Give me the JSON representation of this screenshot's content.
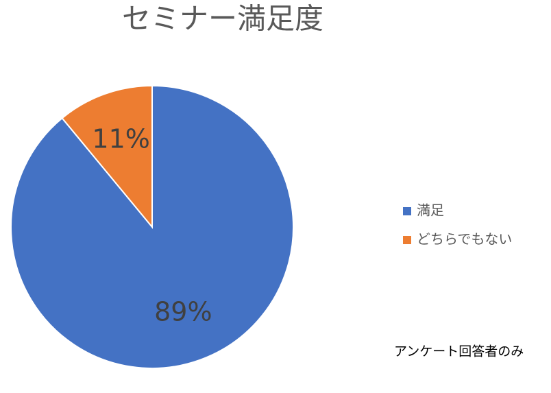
{
  "chart_data": {
    "type": "pie",
    "title": "セミナー満足度",
    "categories": [
      "満足",
      "どちらでもない"
    ],
    "values": [
      89,
      11
    ],
    "value_labels": [
      "89%",
      "11%"
    ],
    "colors": [
      "#4472c4",
      "#ed7d31"
    ],
    "legend": "right",
    "annotation": "アンケート回答者のみ"
  }
}
